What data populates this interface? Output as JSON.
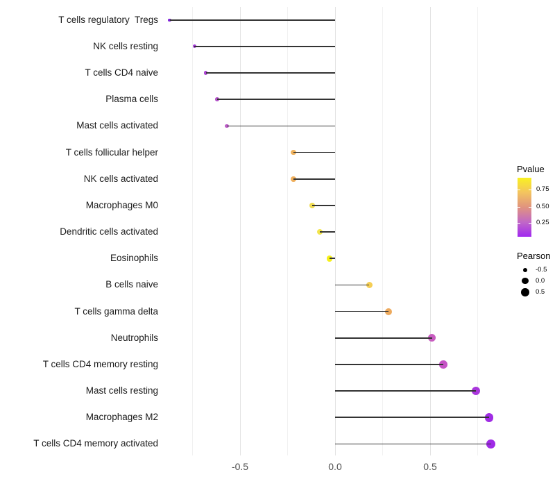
{
  "chart_data": {
    "type": "scatter",
    "variant": "lollipop",
    "title": "",
    "xlabel": "",
    "ylabel": "",
    "x_axis": {
      "tick_labels": [
        "-0.5",
        "0.0",
        "0.5"
      ],
      "tick_values": [
        -0.5,
        0.0,
        0.5
      ],
      "lim": [
        -0.95,
        0.91
      ],
      "gridline_values": [
        -0.75,
        -0.5,
        -0.25,
        0,
        0.25,
        0.5,
        0.75
      ],
      "grid": "vertical-only"
    },
    "points": [
      {
        "label": "T cells regulatory  Tregs",
        "pearson": -0.87,
        "color": "#7E22D8"
      },
      {
        "label": "NK cells resting",
        "pearson": -0.74,
        "color": "#A43BD8"
      },
      {
        "label": "T cells CD4 naive",
        "pearson": -0.68,
        "color": "#AC46D2"
      },
      {
        "label": "Plasma cells",
        "pearson": -0.62,
        "color": "#B352C8"
      },
      {
        "label": "Mast cells activated",
        "pearson": -0.57,
        "color": "#BB5CC6"
      },
      {
        "label": "T cells follicular helper",
        "pearson": -0.22,
        "color": "#EFB25E"
      },
      {
        "label": "NK cells activated",
        "pearson": -0.22,
        "color": "#EFAF5C"
      },
      {
        "label": "Macrophages M0",
        "pearson": -0.12,
        "color": "#F0DC52"
      },
      {
        "label": "Dendritic cells activated",
        "pearson": -0.08,
        "color": "#F2E54E"
      },
      {
        "label": "Eosinophils",
        "pearson": -0.03,
        "color": "#F6F019"
      },
      {
        "label": "B cells naive",
        "pearson": 0.18,
        "color": "#F5CE55"
      },
      {
        "label": "T cells gamma delta",
        "pearson": 0.28,
        "color": "#EDAA5E"
      },
      {
        "label": "Neutrophils",
        "pearson": 0.51,
        "color": "#C85CC0"
      },
      {
        "label": "T cells CD4 memory resting",
        "pearson": 0.57,
        "color": "#C653C6"
      },
      {
        "label": "Mast cells resting",
        "pearson": 0.74,
        "color": "#A936DC"
      },
      {
        "label": "Macrophages M2",
        "pearson": 0.81,
        "color": "#A02CE4"
      },
      {
        "label": "T cells CD4 memory activated",
        "pearson": 0.82,
        "color": "#9F2AE6"
      }
    ],
    "legend": {
      "pvalue": {
        "title": "Pvalue",
        "tick_labels": [
          "0.75",
          "0.50",
          "0.25"
        ],
        "gradient_stops_bottom_to_top": [
          "#A128F0",
          "#C168C6",
          "#E0937F",
          "#F3C45F",
          "#F9F121"
        ]
      },
      "pearson": {
        "title": "Pearson",
        "entries": [
          {
            "label": "-0.5",
            "value": -0.5
          },
          {
            "label": "0.0",
            "value": 0.0
          },
          {
            "label": "0.5",
            "value": 0.5
          }
        ],
        "dot_color": "#000000"
      }
    },
    "styles": {
      "stem_color": "#333333",
      "grid_major_color": "#e3e3e3",
      "grid_minor_color": "#f1f1f1",
      "axis_text_color": "#4d4d4d",
      "label_text_color": "#1a1a1a",
      "background": "#ffffff"
    }
  }
}
